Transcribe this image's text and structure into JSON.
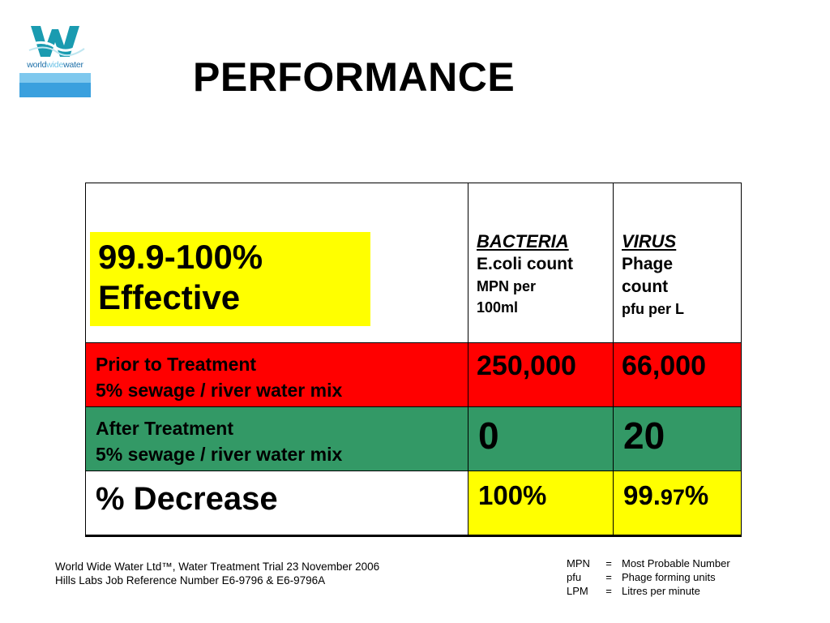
{
  "logo": {
    "text_world": "world",
    "text_wide": "wide",
    "text_water": "water",
    "brand_color": "#1c6fa8",
    "accent_color": "#6bc2e6"
  },
  "title": "PERFORMANCE",
  "effective": {
    "line1": "99.9-100%",
    "line2": "Effective"
  },
  "headers": {
    "bacteria": {
      "category": "BACTERIA",
      "line1": "E.coli count",
      "line2": "MPN per",
      "line3": "100ml"
    },
    "virus": {
      "category": "VIRUS",
      "line1": "Phage",
      "line2": "count",
      "line3": "pfu per L"
    }
  },
  "rows": [
    {
      "label_line1": "Prior to Treatment",
      "label_line2": "5% sewage / river water mix",
      "bacteria": "250,000",
      "virus": "66,000",
      "color": "#ff0000"
    },
    {
      "label_line1": "After Treatment",
      "label_line2": "5% sewage / river water mix",
      "bacteria": "0",
      "virus": "20",
      "color": "#339966"
    }
  ],
  "decrease": {
    "label": "% Decrease",
    "bacteria": "100%",
    "virus_a": "99.",
    "virus_b": "97",
    "virus_c": "%"
  },
  "footer": {
    "line1": "World Wide Water Ltd™, Water Treatment Trial 23 November 2006",
    "line2": "Hills Labs Job Reference Number  E6-9796 & E6-9796A"
  },
  "legend": [
    {
      "abbr": "MPN",
      "eq": "=",
      "desc": "Most Probable Number"
    },
    {
      "abbr": "pfu",
      "eq": "=",
      "desc": "Phage forming units"
    },
    {
      "abbr": "LPM",
      "eq": "=",
      "desc": "Litres per minute"
    }
  ],
  "colors": {
    "highlight": "#ffff00",
    "red": "#ff0000",
    "green": "#339966"
  }
}
